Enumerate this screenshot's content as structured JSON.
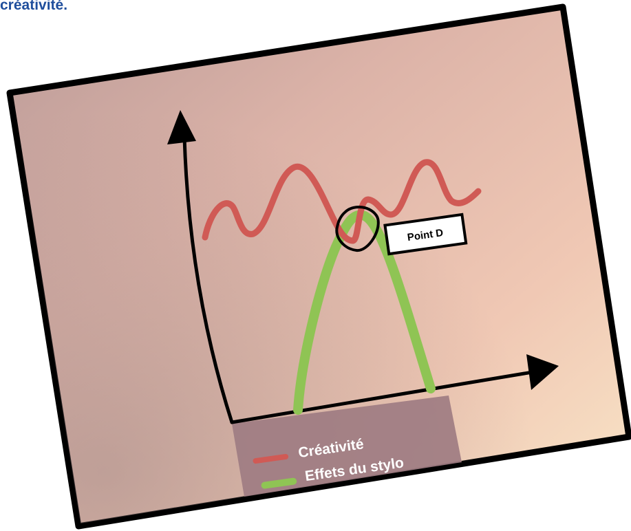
{
  "caption": "créativité.",
  "callout": {
    "label": "Point D"
  },
  "legend": {
    "items": [
      {
        "label": "Créativité",
        "color": "#d05a55"
      },
      {
        "label": "Effets du stylo",
        "color": "#8fc454"
      }
    ]
  },
  "colors": {
    "caption": "#1f4e9c",
    "frame": "#000000",
    "paper_light": "#f8e1c9",
    "paper_dark": "#b99b93",
    "legend_box": "#9e7c82"
  },
  "chart_data": {
    "type": "line",
    "series": [
      {
        "name": "Créativité",
        "style": "wavy",
        "color": "#d05a55"
      },
      {
        "name": "Effets du stylo",
        "style": "inverted-u",
        "color": "#8fc454"
      }
    ],
    "annotation": {
      "label": "Point D",
      "marks": "intersection of the two curves"
    },
    "axes": {
      "x_arrow": true,
      "y_arrow": true,
      "tick_labels": false
    }
  }
}
